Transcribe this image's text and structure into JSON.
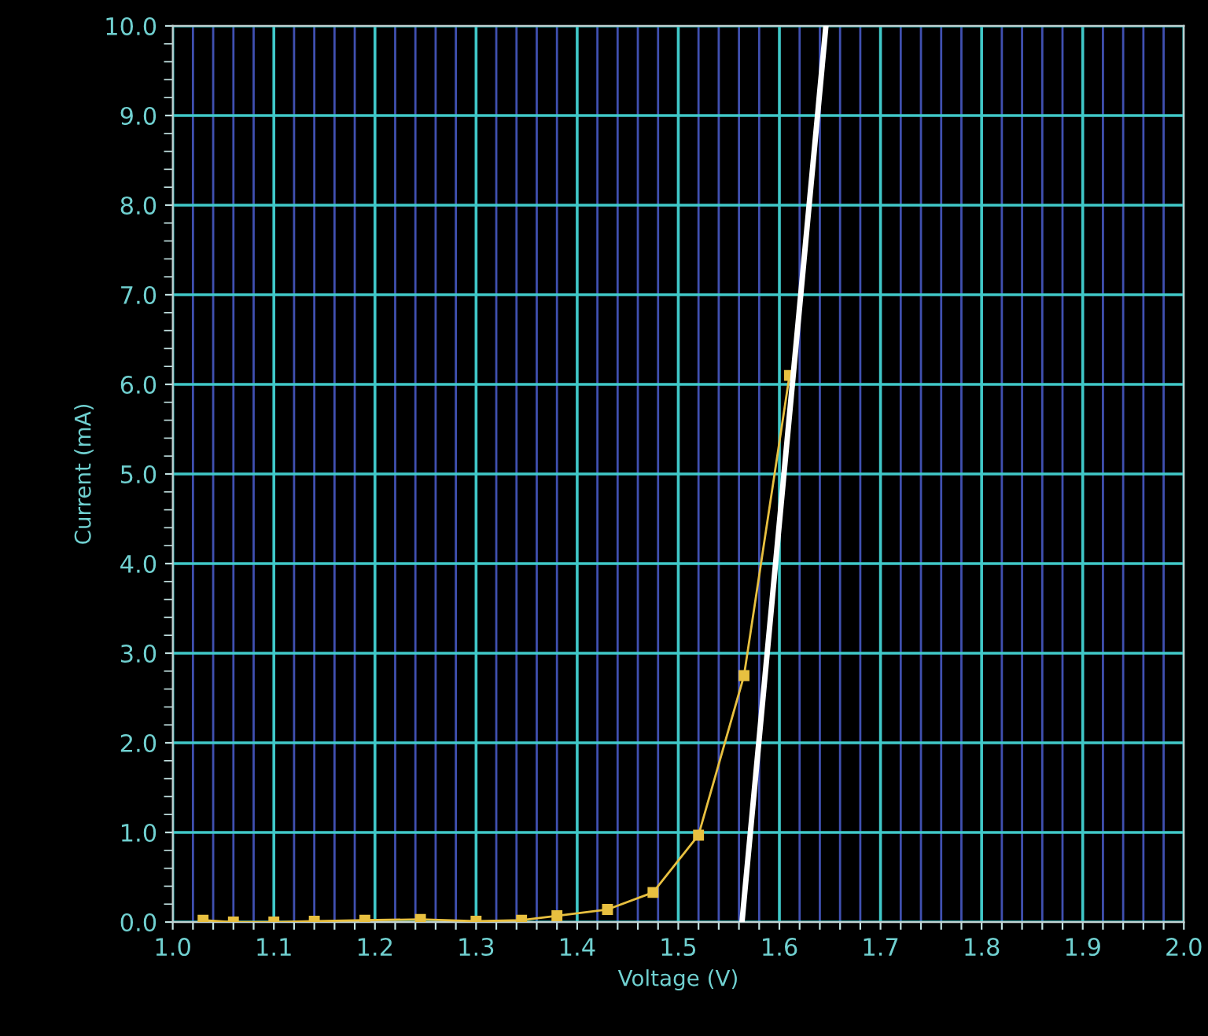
{
  "chart_data": {
    "type": "line",
    "xlabel": "Voltage (V)",
    "ylabel": "Current (mA)",
    "xlim": [
      1.0,
      2.0
    ],
    "ylim": [
      0.0,
      10.0
    ],
    "xticks": [
      {
        "value": 1.0,
        "label": "1.0"
      },
      {
        "value": 1.02,
        "label": null
      },
      {
        "value": 1.04,
        "label": null
      },
      {
        "value": 1.06,
        "label": null
      },
      {
        "value": 1.08,
        "label": null
      },
      {
        "value": 1.1,
        "label": "1.1"
      },
      {
        "value": 1.12,
        "label": null
      },
      {
        "value": 1.14,
        "label": null
      },
      {
        "value": 1.16,
        "label": null
      },
      {
        "value": 1.18,
        "label": null
      },
      {
        "value": 1.2,
        "label": "1.2"
      },
      {
        "value": 1.22,
        "label": null
      },
      {
        "value": 1.24,
        "label": null
      },
      {
        "value": 1.26,
        "label": null
      },
      {
        "value": 1.28,
        "label": null
      },
      {
        "value": 1.3,
        "label": "1.3"
      },
      {
        "value": 1.32,
        "label": null
      },
      {
        "value": 1.34,
        "label": null
      },
      {
        "value": 1.36,
        "label": null
      },
      {
        "value": 1.38,
        "label": null
      },
      {
        "value": 1.4,
        "label": "1.4"
      },
      {
        "value": 1.42,
        "label": null
      },
      {
        "value": 1.44,
        "label": null
      },
      {
        "value": 1.46,
        "label": null
      },
      {
        "value": 1.48,
        "label": null
      },
      {
        "value": 1.5,
        "label": "1.5"
      },
      {
        "value": 1.52,
        "label": null
      },
      {
        "value": 1.54,
        "label": null
      },
      {
        "value": 1.56,
        "label": null
      },
      {
        "value": 1.58,
        "label": null
      },
      {
        "value": 1.6,
        "label": "1.6"
      },
      {
        "value": 1.62,
        "label": null
      },
      {
        "value": 1.64,
        "label": null
      },
      {
        "value": 1.66,
        "label": null
      },
      {
        "value": 1.68,
        "label": null
      },
      {
        "value": 1.7,
        "label": "1.7"
      },
      {
        "value": 1.72,
        "label": null
      },
      {
        "value": 1.74,
        "label": null
      },
      {
        "value": 1.76,
        "label": null
      },
      {
        "value": 1.78,
        "label": null
      },
      {
        "value": 1.8,
        "label": "1.8"
      },
      {
        "value": 1.82,
        "label": null
      },
      {
        "value": 1.84,
        "label": null
      },
      {
        "value": 1.86,
        "label": null
      },
      {
        "value": 1.88,
        "label": null
      },
      {
        "value": 1.9,
        "label": "1.9"
      },
      {
        "value": 1.92,
        "label": null
      },
      {
        "value": 1.94,
        "label": null
      },
      {
        "value": 1.96,
        "label": null
      },
      {
        "value": 1.98,
        "label": null
      },
      {
        "value": 2.0,
        "label": "2.0"
      }
    ],
    "yticks": [
      {
        "value": 0.0,
        "label": "0.0"
      },
      {
        "value": 1.0,
        "label": "1.0"
      },
      {
        "value": 2.0,
        "label": "2.0"
      },
      {
        "value": 3.0,
        "label": "3.0"
      },
      {
        "value": 4.0,
        "label": "4.0"
      },
      {
        "value": 5.0,
        "label": "5.0"
      },
      {
        "value": 6.0,
        "label": "6.0"
      },
      {
        "value": 7.0,
        "label": "7.0"
      },
      {
        "value": 8.0,
        "label": "8.0"
      },
      {
        "value": 9.0,
        "label": "9.0"
      },
      {
        "value": 10.0,
        "label": "10.0"
      }
    ],
    "grid": true,
    "series": [
      {
        "color": "#e8c040",
        "marker": "square",
        "x": [
          1.03,
          1.06,
          1.1,
          1.14,
          1.19,
          1.245,
          1.3,
          1.345,
          1.38,
          1.43,
          1.475,
          1.52,
          1.565,
          1.61
        ],
        "values": [
          0.02,
          0.0,
          0.0,
          0.01,
          0.02,
          0.03,
          0.01,
          0.02,
          0.07,
          0.14,
          0.33,
          0.97,
          2.75,
          6.1
        ]
      },
      {
        "type": "line",
        "color": "#ffffff",
        "marker": "none",
        "x": [
          1.563,
          1.646
        ],
        "values": [
          0.0,
          10.0
        ]
      }
    ]
  }
}
